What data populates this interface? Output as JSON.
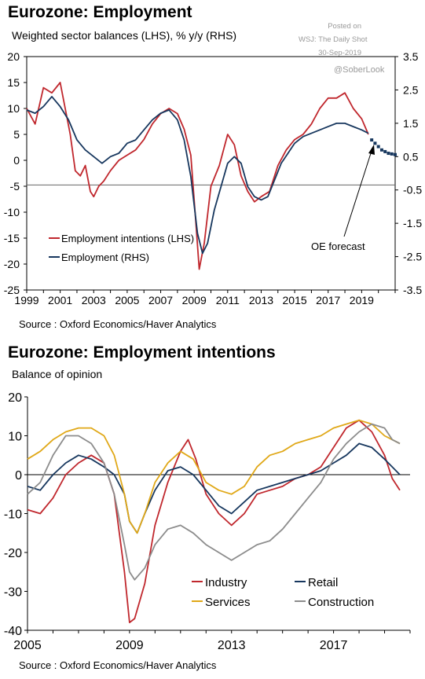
{
  "credit": {
    "posted": "Posted on",
    "source": "WSJ: The Daily Shot",
    "date": "30-Sep-2019",
    "handle": "@SoberLook"
  },
  "chart_data": [
    {
      "type": "line",
      "title": "Eurozone: Employment",
      "subtitle": "Weighted sector balances (LHS), % y/y (RHS)",
      "source": "Source : Oxford Economics/Haver Analytics",
      "x_ticks": [
        "1999",
        "2001",
        "2003",
        "2005",
        "2007",
        "2009",
        "2011",
        "2013",
        "2015",
        "2017",
        "2019"
      ],
      "x_range": [
        1999,
        2021
      ],
      "y_left": {
        "range": [
          -25,
          20
        ],
        "ticks": [
          "20",
          "15",
          "10",
          "5",
          "0",
          "-5",
          "-10",
          "-15",
          "-20",
          "-25"
        ]
      },
      "y_right": {
        "range": [
          -3.5,
          3.5
        ],
        "ticks": [
          "3.5",
          "2.5",
          "1.5",
          "0.5",
          "-0.5",
          "-1.5",
          "-2.5",
          "-3.5"
        ]
      },
      "baseline_right": -0.35,
      "legend": "lower-left",
      "annotation": "OE forecast",
      "series": [
        {
          "name": "Employment intentions (LHS)",
          "axis": "left",
          "color": "#c0272d",
          "x": [
            1999,
            1999.5,
            2000,
            2000.5,
            2001,
            2001.3,
            2001.6,
            2001.9,
            2002.2,
            2002.5,
            2002.8,
            2003,
            2003.3,
            2003.6,
            2004,
            2004.5,
            2005,
            2005.5,
            2006,
            2006.5,
            2007,
            2007.5,
            2008,
            2008.4,
            2008.8,
            2009.1,
            2009.3,
            2009.6,
            2010,
            2010.5,
            2011,
            2011.4,
            2011.8,
            2012.2,
            2012.6,
            2013,
            2013.5,
            2014,
            2014.5,
            2015,
            2015.5,
            2016,
            2016.5,
            2017,
            2017.5,
            2018,
            2018.5,
            2019,
            2019.4
          ],
          "y": [
            10,
            7,
            14,
            13,
            15,
            10,
            5,
            -2,
            -3,
            -1,
            -6,
            -7,
            -5,
            -4,
            -2,
            0,
            1,
            2,
            4,
            7,
            9,
            10,
            9,
            6,
            1,
            -12,
            -21,
            -16,
            -5,
            -1,
            5,
            3,
            -3,
            -6,
            -8,
            -7,
            -6,
            -1,
            2,
            4,
            5,
            7,
            10,
            12,
            12,
            13,
            10,
            8,
            5
          ]
        },
        {
          "name": "Employment (RHS)",
          "axis": "right",
          "color": "#17375e",
          "x": [
            1999,
            1999.5,
            2000,
            2000.5,
            2001,
            2001.5,
            2002,
            2002.5,
            2003,
            2003.5,
            2004,
            2004.5,
            2005,
            2005.5,
            2006,
            2006.5,
            2007,
            2007.5,
            2008,
            2008.4,
            2008.8,
            2009.2,
            2009.5,
            2009.8,
            2010.2,
            2010.6,
            2011,
            2011.4,
            2011.8,
            2012.2,
            2012.6,
            2013,
            2013.4,
            2013.8,
            2014.2,
            2014.6,
            2015,
            2015.5,
            2016,
            2016.5,
            2017,
            2017.5,
            2018,
            2018.5,
            2019,
            2019.4
          ],
          "y": [
            1.9,
            1.8,
            2.0,
            2.3,
            2.0,
            1.6,
            1.0,
            0.7,
            0.5,
            0.3,
            0.5,
            0.6,
            0.9,
            1.0,
            1.3,
            1.6,
            1.8,
            1.9,
            1.6,
            1.0,
            -0.1,
            -1.8,
            -2.4,
            -2.1,
            -1.1,
            -0.4,
            0.3,
            0.5,
            0.3,
            -0.4,
            -0.7,
            -0.8,
            -0.7,
            -0.2,
            0.3,
            0.6,
            0.9,
            1.1,
            1.2,
            1.3,
            1.4,
            1.5,
            1.5,
            1.4,
            1.3,
            1.2
          ]
        },
        {
          "name": "OE forecast",
          "axis": "right",
          "color": "#17375e",
          "style": "dotted",
          "x": [
            2019.6,
            2019.8,
            2020.0,
            2020.2,
            2020.4,
            2020.6,
            2020.8,
            2021.0
          ],
          "y": [
            1.0,
            0.9,
            0.8,
            0.7,
            0.65,
            0.6,
            0.58,
            0.56
          ]
        }
      ]
    },
    {
      "type": "line",
      "title": "Eurozone: Employment intentions",
      "subtitle": "Balance of opinion",
      "source": "Source : Oxford Economics/Haver Analytics",
      "x_ticks": [
        "2005",
        "2009",
        "2013",
        "2017"
      ],
      "x_range": [
        2005,
        2020
      ],
      "y": {
        "range": [
          -40,
          20
        ],
        "ticks": [
          "20",
          "10",
          "0",
          "-10",
          "-20",
          "-30",
          "-40"
        ]
      },
      "legend": "bottom-right",
      "series": [
        {
          "name": "Industry",
          "color": "#c0272d",
          "x": [
            2005,
            2005.5,
            2006,
            2006.5,
            2007,
            2007.5,
            2008,
            2008.4,
            2008.8,
            2009.0,
            2009.2,
            2009.6,
            2010,
            2010.5,
            2011,
            2011.3,
            2011.6,
            2012,
            2012.5,
            2013,
            2013.5,
            2014,
            2014.5,
            2015,
            2015.5,
            2016,
            2016.5,
            2017,
            2017.5,
            2018,
            2018.5,
            2019,
            2019.3,
            2019.6
          ],
          "y": [
            -9,
            -10,
            -6,
            0,
            3,
            5,
            3,
            -5,
            -25,
            -38,
            -37,
            -28,
            -13,
            -2,
            6,
            9,
            4,
            -5,
            -10,
            -13,
            -10,
            -5,
            -4,
            -3,
            -1,
            0,
            2,
            7,
            12,
            14,
            11,
            5,
            -1,
            -4
          ]
        },
        {
          "name": "Retail",
          "color": "#17375e",
          "x": [
            2005,
            2005.5,
            2006,
            2006.5,
            2007,
            2007.5,
            2008,
            2008.4,
            2008.8,
            2009.0,
            2009.3,
            2009.6,
            2010,
            2010.5,
            2011,
            2011.5,
            2012,
            2012.5,
            2013,
            2013.5,
            2014,
            2014.5,
            2015,
            2015.5,
            2016,
            2016.5,
            2017,
            2017.5,
            2018,
            2018.5,
            2019,
            2019.3,
            2019.6
          ],
          "y": [
            -3,
            -4,
            0,
            3,
            5,
            4,
            2,
            0,
            -5,
            -12,
            -15,
            -10,
            -4,
            1,
            2,
            0,
            -4,
            -8,
            -10,
            -7,
            -4,
            -3,
            -2,
            -1,
            0,
            1,
            3,
            5,
            8,
            7,
            4,
            2,
            0
          ]
        },
        {
          "name": "Services",
          "color": "#e0a818",
          "x": [
            2005,
            2005.5,
            2006,
            2006.5,
            2007,
            2007.5,
            2008,
            2008.4,
            2008.8,
            2009.0,
            2009.3,
            2009.6,
            2010,
            2010.5,
            2011,
            2011.5,
            2012,
            2012.5,
            2013,
            2013.5,
            2014,
            2014.5,
            2015,
            2015.5,
            2016,
            2016.5,
            2017,
            2017.5,
            2018,
            2018.5,
            2019,
            2019.3,
            2019.6
          ],
          "y": [
            4,
            6,
            9,
            11,
            12,
            12,
            10,
            5,
            -5,
            -12,
            -15,
            -10,
            -2,
            3,
            6,
            4,
            -2,
            -4,
            -5,
            -3,
            2,
            5,
            6,
            8,
            9,
            10,
            12,
            13,
            14,
            13,
            10,
            9,
            8
          ]
        },
        {
          "name": "Construction",
          "color": "#8c8c8c",
          "x": [
            2005,
            2005.5,
            2006,
            2006.5,
            2007,
            2007.5,
            2008,
            2008.4,
            2008.8,
            2009.0,
            2009.2,
            2009.6,
            2010,
            2010.5,
            2011,
            2011.5,
            2012,
            2012.5,
            2013,
            2013.5,
            2014,
            2014.5,
            2015,
            2015.5,
            2016,
            2016.5,
            2017,
            2017.5,
            2018,
            2018.5,
            2019,
            2019.3,
            2019.6
          ],
          "y": [
            -5,
            -2,
            5,
            10,
            10,
            8,
            3,
            -5,
            -18,
            -25,
            -27,
            -24,
            -18,
            -14,
            -13,
            -15,
            -18,
            -20,
            -22,
            -20,
            -18,
            -17,
            -14,
            -10,
            -6,
            -2,
            4,
            8,
            11,
            13,
            12,
            9,
            8
          ]
        }
      ]
    }
  ]
}
